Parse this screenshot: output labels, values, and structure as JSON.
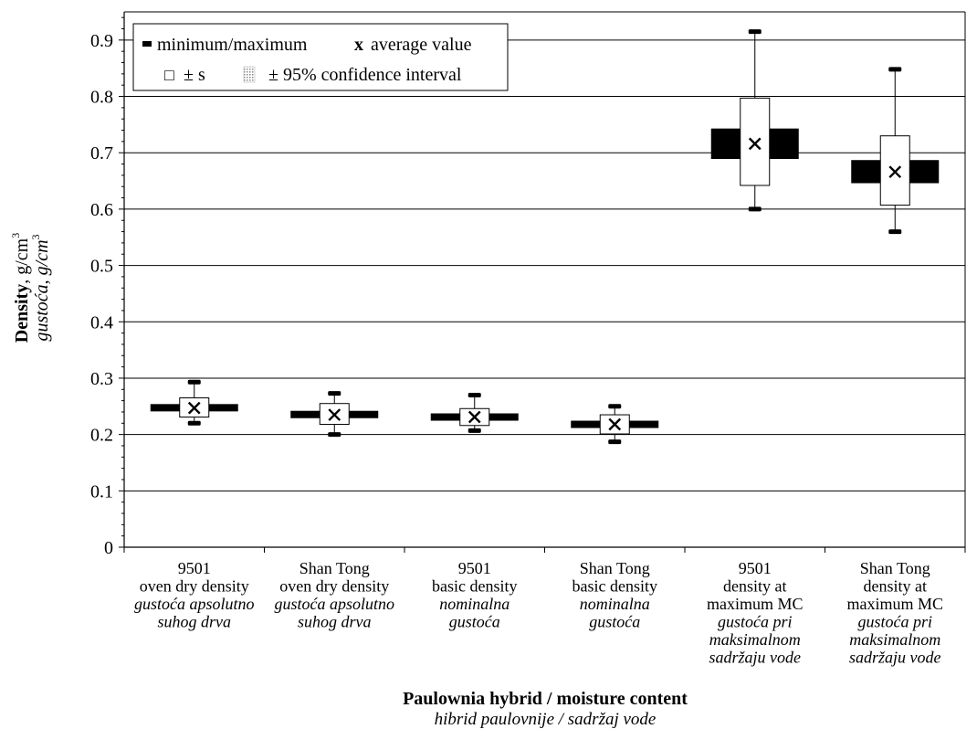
{
  "chart_data": {
    "type": "box",
    "ylim": [
      0,
      0.95
    ],
    "y_ticks": [
      "0",
      "0.1",
      "0.2",
      "0.3",
      "0.4",
      "0.5",
      "0.6",
      "0.7",
      "0.8",
      "0.9"
    ],
    "y_tick_values": [
      0,
      0.1,
      0.2,
      0.3,
      0.4,
      0.5,
      0.6,
      0.7,
      0.8,
      0.9
    ],
    "grid": true,
    "legend_position": "top-left",
    "ylabel": {
      "en_bold": "Density",
      "en_rest": ", g/cm",
      "hr_italic": "gustoća",
      "hr_rest": ", g/cm",
      "sup": "3"
    },
    "xlabel": {
      "en": "Paulownia hybrid / moisture content",
      "hr": "hibrid paulovnije / sadržaj vode"
    },
    "legend": {
      "minmax": "minimum/maximum",
      "avg_symbol": "x",
      "avg": "average value",
      "std_symbol": "□",
      "std": "± s",
      "ci": "± 95% confidence  interval"
    },
    "categories": [
      {
        "lines": [
          "9501",
          "oven dry density"
        ],
        "italic_lines": [
          "gustoća apsolutno",
          "suhog drva"
        ],
        "min": 0.22,
        "max": 0.293,
        "mean": 0.247,
        "sd_low": 0.231,
        "sd_high": 0.265,
        "ci_low": 0.241,
        "ci_high": 0.254
      },
      {
        "lines": [
          "Shan Tong",
          "oven dry density"
        ],
        "italic_lines": [
          "gustoća apsolutno",
          "suhog drva"
        ],
        "min": 0.2,
        "max": 0.273,
        "mean": 0.235,
        "sd_low": 0.218,
        "sd_high": 0.255,
        "ci_low": 0.229,
        "ci_high": 0.242
      },
      {
        "lines": [
          "9501",
          "basic density"
        ],
        "italic_lines": [
          "nominalna",
          "gustoća"
        ],
        "min": 0.207,
        "max": 0.27,
        "mean": 0.231,
        "sd_low": 0.216,
        "sd_high": 0.246,
        "ci_low": 0.226,
        "ci_high": 0.236
      },
      {
        "lines": [
          "Shan Tong",
          "basic density"
        ],
        "italic_lines": [
          "nominalna",
          "gustoća"
        ],
        "min": 0.187,
        "max": 0.25,
        "mean": 0.218,
        "sd_low": 0.201,
        "sd_high": 0.235,
        "ci_low": 0.212,
        "ci_high": 0.224
      },
      {
        "lines": [
          "9501",
          "density at",
          "maximum MC"
        ],
        "italic_lines": [
          "gustoća pri",
          "maksimalnom",
          "sadržaju vode"
        ],
        "min": 0.6,
        "max": 0.915,
        "mean": 0.716,
        "sd_low": 0.642,
        "sd_high": 0.797,
        "ci_low": 0.689,
        "ci_high": 0.743
      },
      {
        "lines": [
          "Shan Tong",
          "density at",
          "maximum MC"
        ],
        "italic_lines": [
          "gustoća pri",
          "maksimalnom",
          "sadržaju vode"
        ],
        "min": 0.56,
        "max": 0.848,
        "mean": 0.666,
        "sd_low": 0.607,
        "sd_high": 0.73,
        "ci_low": 0.646,
        "ci_high": 0.687
      }
    ]
  }
}
